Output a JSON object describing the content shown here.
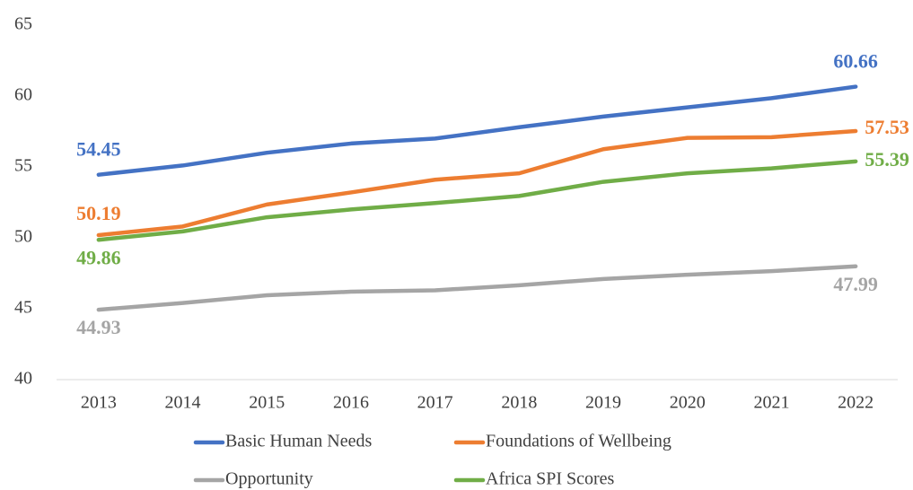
{
  "chart_data": {
    "type": "line",
    "categories": [
      "2013",
      "2014",
      "2015",
      "2016",
      "2017",
      "2018",
      "2019",
      "2020",
      "2021",
      "2022"
    ],
    "series": [
      {
        "name": "Basic Human Needs",
        "color": "#4472c4",
        "values": [
          54.45,
          55.1,
          56.0,
          56.65,
          57.0,
          57.8,
          58.55,
          59.2,
          59.85,
          60.66
        ]
      },
      {
        "name": "Foundations of Wellbeing",
        "color": "#ed7d31",
        "values": [
          50.19,
          50.8,
          52.35,
          53.2,
          54.1,
          54.55,
          56.25,
          57.05,
          57.1,
          57.53
        ]
      },
      {
        "name": "Opportunity",
        "color": "#a5a5a5",
        "values": [
          44.93,
          45.4,
          45.95,
          46.2,
          46.3,
          46.65,
          47.1,
          47.4,
          47.65,
          47.99
        ]
      },
      {
        "name": "Africa SPI Scores",
        "color": "#70ad47",
        "values": [
          49.86,
          50.45,
          51.45,
          52.0,
          52.45,
          52.95,
          53.95,
          54.55,
          54.9,
          55.39
        ]
      }
    ],
    "ylim": [
      40,
      65
    ],
    "yticks": [
      40,
      45,
      50,
      55,
      60,
      65
    ],
    "grid": false,
    "legend": "bottom"
  }
}
